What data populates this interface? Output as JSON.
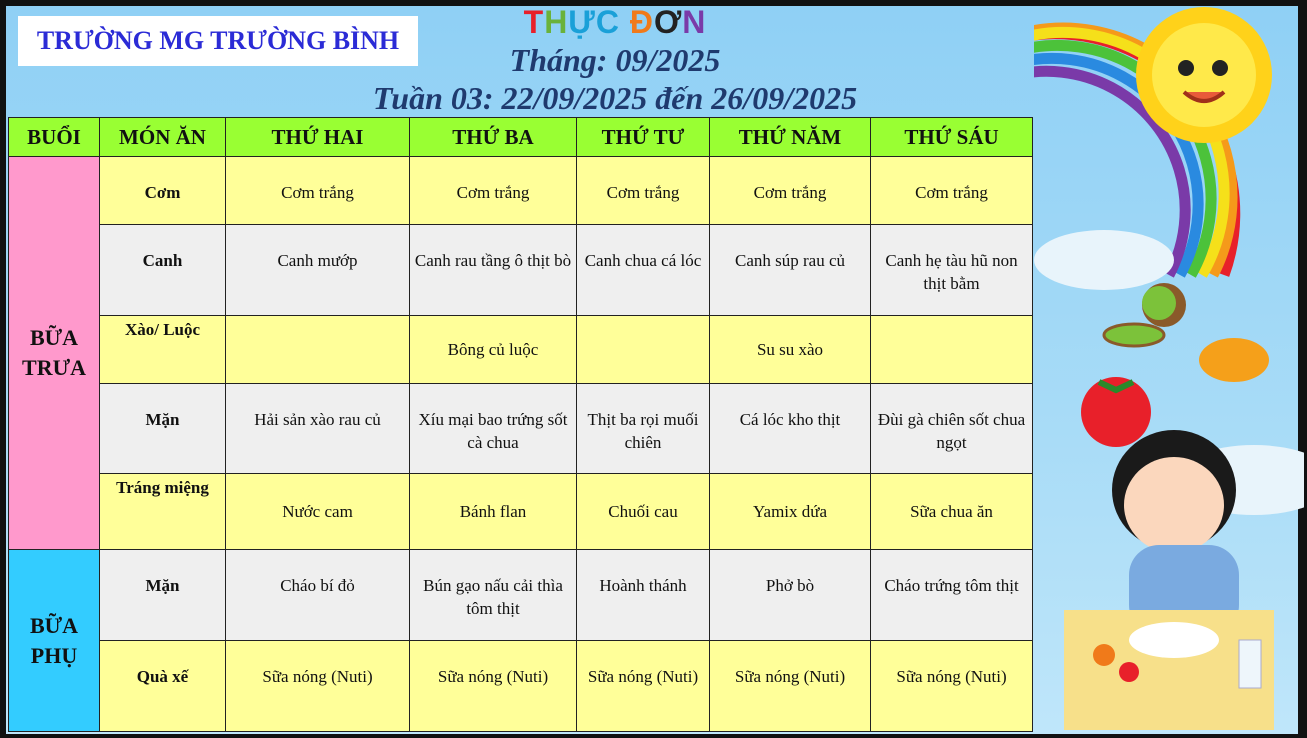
{
  "header": {
    "school": "TRƯỜNG MG TRƯỜNG BÌNH",
    "title_letters": [
      {
        "ch": "T",
        "color": "#e8202a"
      },
      {
        "ch": "H",
        "color": "#6ab23a"
      },
      {
        "ch": "Ự",
        "color": "#1aa0d8"
      },
      {
        "ch": "C",
        "color": "#1aa0d8"
      },
      {
        "ch": " ",
        "color": "#000"
      },
      {
        "ch": "Đ",
        "color": "#f07a1a"
      },
      {
        "ch": "Ơ",
        "color": "#222"
      },
      {
        "ch": "N",
        "color": "#7a3aa8"
      }
    ],
    "month": "Tháng: 09/2025",
    "week": "Tuần 03: 22/09/2025 đến 26/09/2025"
  },
  "table": {
    "columns": [
      "BUỔI",
      "MÓN ĂN",
      "THỨ HAI",
      "THỨ BA",
      "THỨ TƯ",
      "THỨ NĂM",
      "THỨ SÁU"
    ],
    "sessions": [
      "BỮA TRƯA",
      "BỮA PHỤ"
    ],
    "rows": [
      {
        "dish": "Cơm",
        "cells": [
          "Cơm trắng",
          "Cơm trắng",
          "Cơm trắng",
          "Cơm trắng",
          "Cơm trắng"
        ]
      },
      {
        "dish": "Canh",
        "cells": [
          "Canh mướp",
          "Canh rau tầng ô thịt bò",
          "Canh chua cá lóc",
          "Canh súp rau củ",
          "Canh hẹ tàu hũ non thịt bằm"
        ]
      },
      {
        "dish": "Xào/ Luộc",
        "cells": [
          "",
          "Bông củ luộc",
          "",
          "Su su xào",
          ""
        ]
      },
      {
        "dish": "Mặn",
        "cells": [
          "Hải sản xào rau củ",
          "Xíu mại bao trứng sốt cà chua",
          "Thịt ba rọi muối chiên",
          "Cá lóc kho thịt",
          "Đùi gà chiên sốt chua ngọt"
        ]
      },
      {
        "dish": "Tráng miệng",
        "cells": [
          "Nước cam",
          "Bánh flan",
          "Chuối cau",
          "Yamix dứa",
          "Sữa chua ăn"
        ]
      },
      {
        "dish": "Mặn",
        "cells": [
          "Cháo bí đỏ",
          "Bún gạo nấu cải thìa tôm thịt",
          "Hoành thánh",
          "Phở bò",
          "Cháo trứng tôm thịt"
        ]
      },
      {
        "dish": "Quà xế",
        "cells": [
          "Sữa nóng (Nuti)",
          "Sữa nóng (Nuti)",
          "Sữa nóng (Nuti)",
          "Sữa nóng (Nuti)",
          "Sữa nóng (Nuti)"
        ]
      }
    ]
  },
  "colors": {
    "header_green": "#99ff33",
    "yellow": "#ffff99",
    "grey": "#efefef",
    "lunch": "#ff99cc",
    "snack": "#33ccff"
  }
}
